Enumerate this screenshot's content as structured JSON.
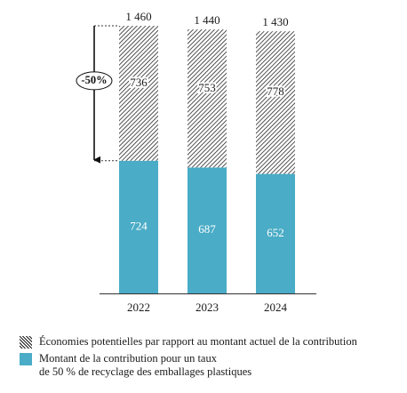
{
  "chart_data": {
    "type": "bar",
    "stacked": true,
    "categories": [
      "2022",
      "2023",
      "2024"
    ],
    "totals": [
      1460,
      1440,
      1430
    ],
    "total_labels": [
      "1 460",
      "1 440",
      "1 430"
    ],
    "series": [
      {
        "name": "Montant de la contribution pour un taux de 50 % de recyclage des emballages plastiques",
        "values": [
          724,
          687,
          652
        ],
        "labels": [
          "724",
          "687",
          "652"
        ],
        "color": "#4aacc6",
        "pattern": "solid"
      },
      {
        "name": "Économies potentielles par rapport au montant actuel de la contribution",
        "values": [
          736,
          753,
          778
        ],
        "labels": [
          "736",
          "753",
          "778"
        ],
        "color": "#1a1a1a",
        "pattern": "hatched"
      }
    ],
    "annotation": {
      "text": "-50%",
      "from_value": 1460,
      "to_value": 724,
      "category": "2022"
    },
    "ylim": [
      0,
      1460
    ],
    "grid": false,
    "legend_position": "bottom"
  },
  "legend": {
    "hatch_label": "Économies potentielles par rapport au montant actuel de la contribution",
    "solid_label": "Montant de la contribution pour un taux\nde 50 % de recyclage des emballages plastiques"
  }
}
